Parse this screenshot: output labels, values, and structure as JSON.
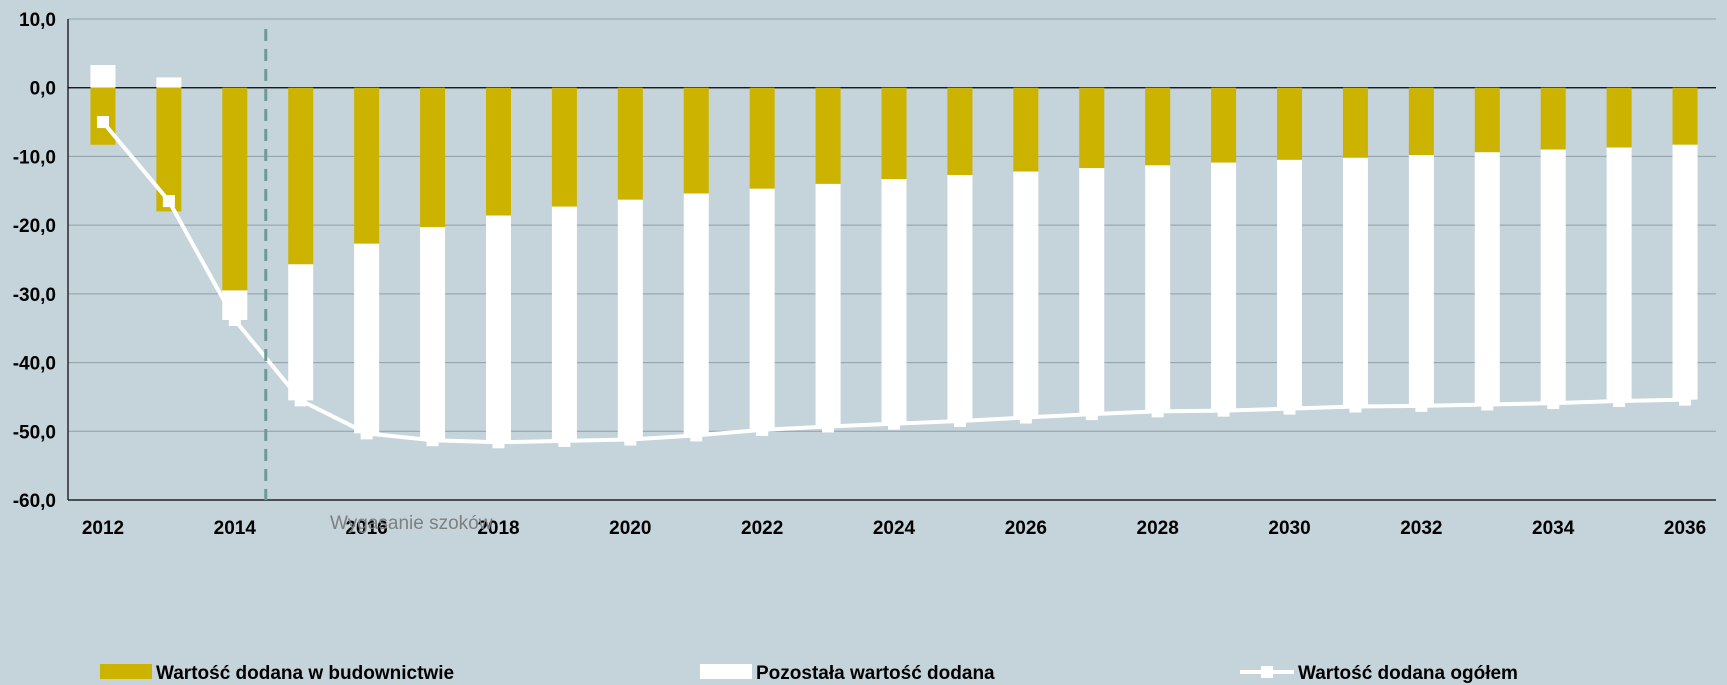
{
  "colors": {
    "background": "#c5d3da",
    "gridline": "#8fa0a8",
    "construction": "#ccb300",
    "other": "#ffffff",
    "total": "#ffffff",
    "shock_line": "#6e9a96",
    "annotation": "#7f7f7f"
  },
  "chart_data": {
    "type": "bar",
    "stacked": true,
    "categories": [
      "2012",
      "2013",
      "2014",
      "2015",
      "2016",
      "2017",
      "2018",
      "2019",
      "2020",
      "2021",
      "2022",
      "2023",
      "2024",
      "2025",
      "2026",
      "2027",
      "2028",
      "2029",
      "2030",
      "2031",
      "2032",
      "2033",
      "2034",
      "2035",
      "2036"
    ],
    "x_tick_labels": [
      "2012",
      "2014",
      "2016",
      "2018",
      "2020",
      "2022",
      "2024",
      "2026",
      "2028",
      "2030",
      "2032",
      "2034",
      "2036"
    ],
    "series": [
      {
        "name": "Wartość dodana w budownictwie",
        "kind": "bar",
        "values": [
          -8.3,
          -18.0,
          -29.5,
          -25.7,
          -22.7,
          -20.3,
          -18.6,
          -17.3,
          -16.3,
          -15.4,
          -14.7,
          -14.0,
          -13.3,
          -12.7,
          -12.2,
          -11.7,
          -11.3,
          -10.9,
          -10.5,
          -10.2,
          -9.8,
          -9.4,
          -9.0,
          -8.7,
          -8.3
        ]
      },
      {
        "name": "Pozostała wartość dodana",
        "kind": "bar",
        "values": [
          3.3,
          1.5,
          -4.3,
          -19.8,
          -27.6,
          -31.0,
          -33.0,
          -34.1,
          -34.9,
          -35.2,
          -35.1,
          -35.3,
          -35.6,
          -35.8,
          -35.8,
          -35.8,
          -35.8,
          -36.1,
          -36.2,
          -36.2,
          -36.5,
          -36.7,
          -36.9,
          -36.9,
          -37.1
        ]
      },
      {
        "name": "Wartość dodana ogółem",
        "kind": "line",
        "values": [
          -5.0,
          -16.5,
          -33.8,
          -45.5,
          -50.3,
          -51.3,
          -51.6,
          -51.4,
          -51.2,
          -50.6,
          -49.8,
          -49.3,
          -48.9,
          -48.5,
          -48.0,
          -47.5,
          -47.1,
          -47.0,
          -46.7,
          -46.4,
          -46.3,
          -46.1,
          -45.9,
          -45.6,
          -45.4
        ]
      }
    ],
    "y_ticks": [
      "10,0",
      "0,0",
      "-10,0",
      "-20,0",
      "-30,0",
      "-40,0",
      "-50,0",
      "-60,0"
    ],
    "y_tick_values": [
      10,
      0,
      -10,
      -20,
      -30,
      -40,
      -50,
      -60
    ],
    "ylim": [
      -60,
      10
    ],
    "grid": true,
    "shock_boundary_after": "2014",
    "annotation": "Wygasanie szoków",
    "legend_position": "bottom"
  },
  "legend": {
    "construction": "Wartość dodana w budownictwie",
    "other": "Pozostała wartość dodana",
    "total": "Wartość dodana ogółem"
  }
}
